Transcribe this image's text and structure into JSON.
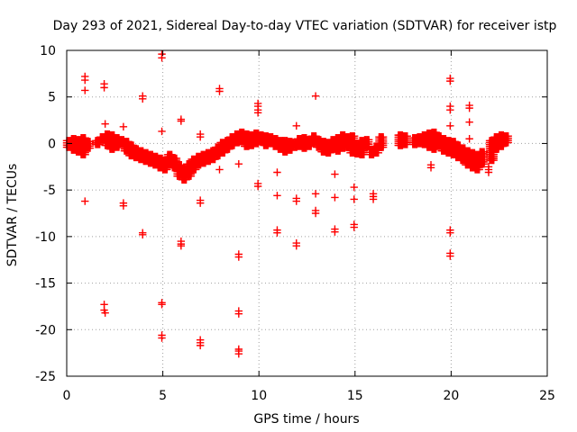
{
  "chart_data": {
    "type": "scatter",
    "title": "Day 293 of 2021, Sidereal Day-to-day VTEC variation (SDTVAR) for receiver istp",
    "xlabel": "GPS time / hours",
    "ylabel": "SDTVAR / TECUs",
    "xlim": [
      0,
      25
    ],
    "ylim": [
      -25,
      10
    ],
    "xticks": [
      0,
      5,
      10,
      15,
      20,
      25
    ],
    "yticks": [
      -25,
      -20,
      -15,
      -10,
      -5,
      0,
      5,
      10
    ],
    "grid": true,
    "marker": "+",
    "series": [
      {
        "name": "SDTVAR",
        "color": "#ff0000",
        "band": [
          [
            0.0,
            -0.4,
            0.3
          ],
          [
            0.25,
            -0.7,
            0.5
          ],
          [
            0.5,
            -0.9,
            0.4
          ],
          [
            0.75,
            -1.2,
            0.6
          ],
          [
            1.0,
            -0.5,
            0.2
          ],
          [
            1.5,
            -0.1,
            0.3
          ],
          [
            1.75,
            0.4,
            0.7
          ],
          [
            2.0,
            -0.2,
            1.0
          ],
          [
            2.25,
            -0.6,
            0.9
          ],
          [
            2.5,
            -0.4,
            0.6
          ],
          [
            2.75,
            -0.1,
            0.4
          ],
          [
            3.0,
            -0.8,
            0.2
          ],
          [
            3.25,
            -1.3,
            -0.2
          ],
          [
            3.5,
            -1.5,
            -0.6
          ],
          [
            3.75,
            -1.7,
            -0.8
          ],
          [
            4.0,
            -1.9,
            -1.0
          ],
          [
            4.25,
            -2.1,
            -1.2
          ],
          [
            4.5,
            -2.3,
            -1.4
          ],
          [
            4.75,
            -2.6,
            -1.6
          ],
          [
            5.0,
            -2.8,
            -1.8
          ],
          [
            5.25,
            -2.3,
            -1.2
          ],
          [
            5.5,
            -2.6,
            -1.6
          ],
          [
            5.75,
            -3.5,
            -2.3
          ],
          [
            6.0,
            -3.9,
            -2.7
          ],
          [
            6.25,
            -3.5,
            -2.2
          ],
          [
            6.5,
            -2.8,
            -1.7
          ],
          [
            6.75,
            -2.3,
            -1.4
          ],
          [
            7.0,
            -2.1,
            -1.2
          ],
          [
            7.25,
            -1.9,
            -1.0
          ],
          [
            7.5,
            -1.7,
            -0.8
          ],
          [
            7.75,
            -1.3,
            -0.4
          ],
          [
            8.0,
            -1.0,
            0.1
          ],
          [
            8.25,
            -0.6,
            0.3
          ],
          [
            8.5,
            -0.2,
            0.7
          ],
          [
            8.75,
            0.1,
            1.0
          ],
          [
            9.0,
            0.2,
            1.2
          ],
          [
            9.25,
            -0.3,
            1.0
          ],
          [
            9.5,
            -0.2,
            0.9
          ],
          [
            9.75,
            0.0,
            1.1
          ],
          [
            10.0,
            0.2,
            0.9
          ],
          [
            10.25,
            -0.2,
            0.8
          ],
          [
            10.5,
            0.0,
            0.7
          ],
          [
            10.75,
            -0.3,
            0.5
          ],
          [
            11.0,
            -0.6,
            0.3
          ],
          [
            11.25,
            -0.9,
            0.3
          ],
          [
            11.5,
            -0.7,
            0.2
          ],
          [
            11.75,
            -0.4,
            0.1
          ],
          [
            12.0,
            -0.3,
            0.5
          ],
          [
            12.25,
            -0.5,
            0.6
          ],
          [
            12.5,
            -0.3,
            0.4
          ],
          [
            12.75,
            0.1,
            0.8
          ],
          [
            13.0,
            -0.4,
            0.4
          ],
          [
            13.25,
            -0.9,
            0.2
          ],
          [
            13.5,
            -1.0,
            0.1
          ],
          [
            13.75,
            -0.6,
            0.4
          ],
          [
            14.0,
            -0.8,
            0.6
          ],
          [
            14.25,
            -0.5,
            0.9
          ],
          [
            14.5,
            -0.4,
            0.7
          ],
          [
            14.75,
            -1.0,
            0.8
          ],
          [
            15.0,
            -1.1,
            0.0
          ],
          [
            15.25,
            -1.2,
            0.3
          ],
          [
            15.5,
            -0.3,
            0.4
          ],
          [
            15.75,
            -1.2,
            -0.7
          ],
          [
            16.0,
            -1.0,
            -0.3
          ],
          [
            16.25,
            -0.4,
            0.7
          ],
          [
            17.25,
            -0.2,
            0.9
          ],
          [
            17.5,
            -0.1,
            0.8
          ],
          [
            18.0,
            -0.1,
            0.6
          ],
          [
            18.25,
            0.0,
            0.7
          ],
          [
            18.5,
            -0.1,
            0.9
          ],
          [
            18.75,
            -0.4,
            1.1
          ],
          [
            19.0,
            -0.6,
            1.2
          ],
          [
            19.25,
            -0.3,
            0.8
          ],
          [
            19.5,
            -0.8,
            0.5
          ],
          [
            19.75,
            -1.0,
            0.3
          ],
          [
            20.0,
            -1.2,
            0.2
          ],
          [
            20.25,
            -1.5,
            -0.2
          ],
          [
            20.5,
            -1.8,
            -0.5
          ],
          [
            20.75,
            -2.3,
            -0.8
          ],
          [
            21.0,
            -2.6,
            -1.0
          ],
          [
            21.25,
            -2.8,
            -1.2
          ],
          [
            21.5,
            -2.2,
            -0.9
          ],
          [
            22.0,
            -1.8,
            0.3
          ],
          [
            22.25,
            -0.6,
            0.7
          ],
          [
            22.5,
            -0.3,
            0.9
          ],
          [
            22.75,
            0.1,
            0.8
          ]
        ],
        "points": [
          [
            0.95,
            7.2
          ],
          [
            0.95,
            6.8
          ],
          [
            0.95,
            5.7
          ],
          [
            0.95,
            -6.2
          ],
          [
            1.95,
            6.4
          ],
          [
            1.95,
            6.0
          ],
          [
            2.0,
            2.1
          ],
          [
            2.05,
            0.8
          ],
          [
            1.95,
            -17.3
          ],
          [
            1.95,
            -17.9
          ],
          [
            2.0,
            -18.2
          ],
          [
            2.95,
            1.8
          ],
          [
            2.95,
            -6.4
          ],
          [
            2.95,
            -6.7
          ],
          [
            3.95,
            5.1
          ],
          [
            3.95,
            4.8
          ],
          [
            3.95,
            -9.6
          ],
          [
            3.95,
            -9.8
          ],
          [
            4.95,
            9.6
          ],
          [
            4.95,
            9.2
          ],
          [
            4.95,
            1.3
          ],
          [
            4.95,
            -17.1
          ],
          [
            4.95,
            -17.3
          ],
          [
            4.95,
            -20.6
          ],
          [
            4.95,
            -20.9
          ],
          [
            5.95,
            2.6
          ],
          [
            5.95,
            2.4
          ],
          [
            5.95,
            -10.5
          ],
          [
            5.95,
            -10.8
          ],
          [
            5.95,
            -11.0
          ],
          [
            6.95,
            1.0
          ],
          [
            6.95,
            0.7
          ],
          [
            6.95,
            -6.1
          ],
          [
            6.95,
            -6.4
          ],
          [
            6.95,
            -21.1
          ],
          [
            6.95,
            -21.4
          ],
          [
            6.95,
            -21.7
          ],
          [
            7.95,
            5.9
          ],
          [
            7.95,
            5.6
          ],
          [
            7.95,
            -2.8
          ],
          [
            8.95,
            -2.2
          ],
          [
            8.95,
            -11.9
          ],
          [
            8.95,
            -12.2
          ],
          [
            8.95,
            -18.0
          ],
          [
            8.95,
            -18.3
          ],
          [
            8.95,
            -22.1
          ],
          [
            8.95,
            -22.3
          ],
          [
            8.95,
            -22.6
          ],
          [
            9.95,
            4.3
          ],
          [
            9.95,
            4.0
          ],
          [
            9.95,
            3.6
          ],
          [
            9.95,
            3.3
          ],
          [
            9.95,
            -4.3
          ],
          [
            9.95,
            -4.6
          ],
          [
            10.95,
            -3.1
          ],
          [
            10.95,
            -5.6
          ],
          [
            10.95,
            -9.3
          ],
          [
            10.95,
            -9.6
          ],
          [
            11.95,
            1.9
          ],
          [
            11.95,
            -5.9
          ],
          [
            11.95,
            -6.2
          ],
          [
            11.95,
            -10.7
          ],
          [
            11.95,
            -11.0
          ],
          [
            12.95,
            5.1
          ],
          [
            12.95,
            -5.4
          ],
          [
            12.95,
            -7.2
          ],
          [
            12.95,
            -7.5
          ],
          [
            13.95,
            -3.3
          ],
          [
            13.95,
            -5.8
          ],
          [
            13.95,
            -9.2
          ],
          [
            13.95,
            -9.5
          ],
          [
            14.95,
            -4.7
          ],
          [
            14.95,
            -6.0
          ],
          [
            14.95,
            -8.7
          ],
          [
            14.95,
            -9.0
          ],
          [
            15.95,
            -5.4
          ],
          [
            15.95,
            -5.7
          ],
          [
            15.95,
            -6.0
          ],
          [
            18.95,
            -2.3
          ],
          [
            18.95,
            -2.6
          ],
          [
            19.95,
            7.0
          ],
          [
            19.95,
            6.7
          ],
          [
            19.95,
            4.0
          ],
          [
            19.95,
            3.6
          ],
          [
            19.95,
            1.9
          ],
          [
            19.95,
            -9.3
          ],
          [
            19.95,
            -9.6
          ],
          [
            19.95,
            -11.8
          ],
          [
            19.95,
            -12.1
          ],
          [
            20.95,
            4.1
          ],
          [
            20.95,
            3.8
          ],
          [
            20.95,
            2.3
          ],
          [
            20.95,
            0.5
          ],
          [
            21.95,
            -2.5
          ],
          [
            21.95,
            -2.8
          ],
          [
            21.95,
            -3.1
          ]
        ]
      }
    ]
  }
}
